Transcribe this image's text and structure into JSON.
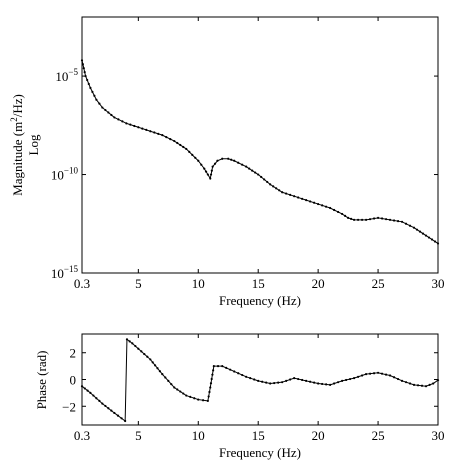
{
  "chart_data": [
    {
      "type": "line",
      "id": "magnitude",
      "xlabel": "Frequency (Hz)",
      "ylabel_line1": "Magnitude (m",
      "ylabel_sup": "2",
      "ylabel_line1_end": "/Hz)",
      "ylabel_line2": "Log",
      "xlim": [
        0.3,
        30
      ],
      "ylim_exp": [
        -15,
        -2
      ],
      "yscale": "log",
      "grid": false,
      "x_ticks": [
        0.3,
        5,
        10,
        15,
        20,
        25,
        30
      ],
      "x_tick_labels": [
        "0.3",
        "5",
        "10",
        "15",
        "20",
        "25",
        "30"
      ],
      "y_ticks_exp": [
        -15,
        -10,
        -5
      ],
      "y_tick_base": "10",
      "y_tick_exp_labels": [
        "−15",
        "−10",
        "−5"
      ],
      "series": [
        {
          "marker": "dot",
          "x": [
            0.3,
            0.6,
            1,
            1.5,
            2,
            3,
            4,
            5,
            6,
            7,
            8,
            9,
            9.5,
            10,
            10.5,
            10.8,
            11,
            11.2,
            11.6,
            12,
            12.5,
            13,
            14,
            15,
            16,
            17,
            18,
            19,
            20,
            21,
            22,
            22.5,
            23,
            24,
            25,
            26,
            27,
            28,
            29,
            30
          ],
          "y_exp": [
            -4.2,
            -5.0,
            -5.6,
            -6.2,
            -6.6,
            -7.1,
            -7.4,
            -7.6,
            -7.8,
            -8.0,
            -8.3,
            -8.7,
            -9.0,
            -9.3,
            -9.7,
            -10.0,
            -10.2,
            -9.6,
            -9.3,
            -9.2,
            -9.2,
            -9.3,
            -9.6,
            -10.0,
            -10.5,
            -10.9,
            -11.1,
            -11.3,
            -11.5,
            -11.7,
            -12.0,
            -12.2,
            -12.3,
            -12.3,
            -12.2,
            -12.3,
            -12.4,
            -12.7,
            -13.1,
            -13.5
          ]
        }
      ]
    },
    {
      "type": "line",
      "id": "phase",
      "xlabel": "Frequency (Hz)",
      "ylabel": "Phase (rad)",
      "xlim": [
        0.3,
        30
      ],
      "ylim": [
        -3.4,
        3.4
      ],
      "grid": false,
      "x_ticks": [
        0.3,
        5,
        10,
        15,
        20,
        25,
        30
      ],
      "x_tick_labels": [
        "0.3",
        "5",
        "10",
        "15",
        "20",
        "25",
        "30"
      ],
      "y_ticks": [
        -2,
        0,
        2
      ],
      "y_tick_labels": [
        "−2",
        "0",
        "2"
      ],
      "series": [
        {
          "marker": "dot",
          "x": [
            0.3,
            1,
            2,
            3,
            3.9,
            4.05,
            4.5,
            5,
            6,
            7,
            8,
            9,
            10,
            10.8,
            11,
            11.3,
            12,
            13,
            14,
            15,
            16,
            17,
            18,
            19,
            20,
            21,
            22,
            23,
            24,
            25,
            26,
            27,
            28,
            29,
            29.6,
            30
          ],
          "y": [
            -0.5,
            -1.0,
            -1.8,
            -2.5,
            -3.1,
            3.0,
            2.7,
            2.3,
            1.5,
            0.4,
            -0.6,
            -1.2,
            -1.5,
            -1.6,
            -0.6,
            1.0,
            1.0,
            0.6,
            0.2,
            -0.1,
            -0.3,
            -0.2,
            0.1,
            -0.1,
            -0.3,
            -0.4,
            -0.1,
            0.1,
            0.4,
            0.5,
            0.3,
            -0.1,
            -0.4,
            -0.5,
            -0.3,
            -0.05
          ]
        }
      ]
    }
  ]
}
